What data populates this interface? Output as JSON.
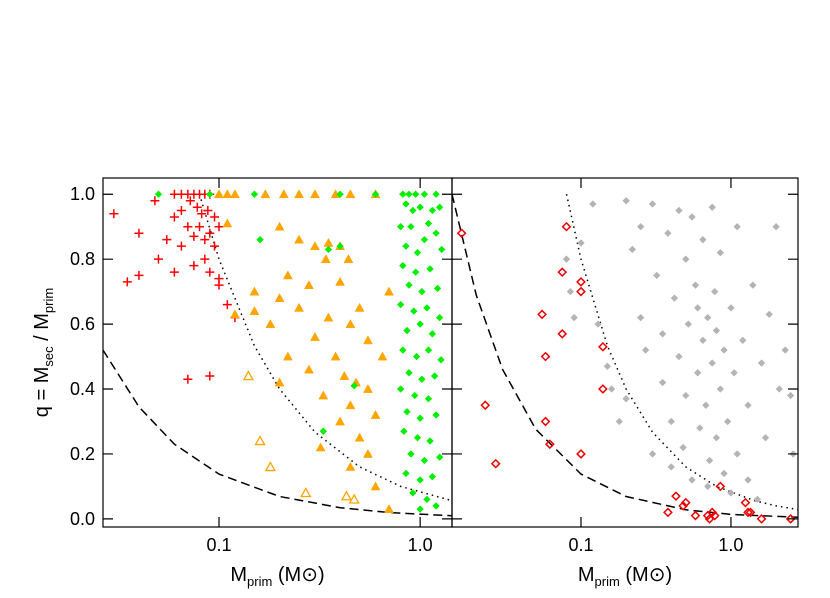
{
  "chart_data": [
    {
      "type": "scatter",
      "xscale": "log",
      "xlabel": [
        "M",
        "prim",
        " (M",
        "⊙",
        ")"
      ],
      "ylabel": [
        "q = M",
        "sec",
        " / M",
        "prim"
      ],
      "xlim": [
        0.0265,
        1.44
      ],
      "ylim": [
        -0.025,
        1.05
      ],
      "xticks": [
        0.1,
        {
          "value": 1,
          "label": "1.0"
        }
      ],
      "yticks": [
        {
          "value": 0,
          "label": "0.0"
        },
        0.2,
        0.4,
        0.6,
        0.8,
        {
          "value": 1,
          "label": "1.0"
        }
      ],
      "ytick_labels": true,
      "lines": [
        {
          "style": "dashed",
          "x": [
            0.0265,
            0.04,
            0.06,
            0.1,
            0.2,
            0.4,
            0.7,
            1.44
          ],
          "y": [
            0.52,
            0.345,
            0.23,
            0.138,
            0.069,
            0.0345,
            0.0197,
            0.0096
          ]
        },
        {
          "style": "dotted",
          "x": [
            0.08,
            0.1,
            0.15,
            0.2,
            0.3,
            0.5,
            0.8,
            1.44
          ],
          "y": [
            1.0,
            0.8,
            0.533,
            0.4,
            0.267,
            0.16,
            0.1,
            0.056
          ]
        }
      ],
      "series": [
        {
          "marker": "plus",
          "color": "#ff0000",
          "x": [
            0.03,
            0.035,
            0.04,
            0.04,
            0.048,
            0.05,
            0.055,
            0.06,
            0.06,
            0.065,
            0.07,
            0.075,
            0.08,
            0.085,
            0.09,
            0.072,
            0.078,
            0.082,
            0.088,
            0.095,
            0.07,
            0.075,
            0.08,
            0.085,
            0.09,
            0.095,
            0.1,
            0.065,
            0.085,
            0.075,
            0.09,
            0.1,
            0.1,
            0.11,
            0.12,
            0.07,
            0.09,
            0.06,
            0.065
          ],
          "y": [
            0.94,
            0.73,
            0.88,
            0.75,
            0.98,
            0.8,
            0.86,
            0.76,
            1.0,
            1.0,
            1.0,
            1.0,
            1.0,
            1.0,
            1.0,
            0.98,
            0.96,
            0.94,
            0.95,
            0.93,
            0.9,
            0.87,
            0.9,
            0.86,
            0.88,
            0.84,
            0.9,
            0.84,
            0.8,
            0.78,
            0.76,
            0.74,
            0.72,
            0.66,
            0.62,
            0.43,
            0.44,
            0.93,
            0.95
          ]
        },
        {
          "marker": "triangle",
          "color": "#ffa500",
          "x": [
            0.1,
            0.11,
            0.12,
            0.17,
            0.21,
            0.25,
            0.3,
            0.38,
            0.45,
            0.6,
            0.11,
            0.2,
            0.25,
            0.3,
            0.35,
            0.4,
            0.44,
            0.22,
            0.28,
            0.34,
            0.4,
            0.15,
            0.2,
            0.15,
            0.18,
            0.25,
            0.35,
            0.45,
            0.5,
            0.55,
            0.3,
            0.22,
            0.28,
            0.38,
            0.42,
            0.48,
            0.2,
            0.33,
            0.45,
            0.55,
            0.6,
            0.4,
            0.5,
            0.32,
            0.55,
            0.45,
            0.6,
            0.7,
            0.12,
            0.7,
            0.65
          ],
          "y": [
            1.0,
            1.0,
            1.0,
            1.0,
            1.0,
            1.0,
            1.0,
            1.0,
            1.0,
            1.0,
            0.91,
            0.9,
            0.86,
            0.84,
            0.85,
            0.84,
            0.8,
            0.75,
            0.72,
            0.8,
            0.73,
            0.7,
            0.68,
            0.64,
            0.6,
            0.65,
            0.62,
            0.6,
            0.65,
            0.55,
            0.56,
            0.5,
            0.46,
            0.5,
            0.44,
            0.42,
            0.42,
            0.38,
            0.35,
            0.4,
            0.32,
            0.3,
            0.25,
            0.22,
            0.2,
            0.16,
            0.1,
            0.03,
            0.63,
            0.7,
            0.5
          ]
        },
        {
          "marker": "triangle-open",
          "color": "#ffa500",
          "x": [
            0.14,
            0.16,
            0.18,
            0.27,
            0.43,
            0.47
          ],
          "y": [
            0.44,
            0.24,
            0.16,
            0.08,
            0.07,
            0.06
          ]
        },
        {
          "marker": "diamond",
          "color": "#00ee00",
          "x": [
            0.05,
            0.09,
            0.15,
            0.16,
            0.4,
            0.6,
            0.4,
            0.47,
            0.33,
            0.35,
            0.82,
            0.88,
            0.95,
            1.05,
            1.2,
            0.85,
            0.92,
            1.0,
            1.15,
            1.25,
            0.8,
            0.9,
            1.1,
            1.2,
            0.85,
            0.97,
            1.05,
            1.28,
            0.82,
            0.95,
            1.12,
            0.88,
            1.02,
            1.22,
            0.8,
            0.93,
            1.08,
            1.25,
            0.86,
            1.0,
            1.15,
            0.82,
            0.96,
            1.1,
            1.27,
            0.88,
            1.02,
            1.18,
            0.8,
            0.94,
            1.1,
            0.86,
            1.0,
            1.2,
            0.83,
            0.97,
            1.12,
            0.9,
            1.05,
            1.25,
            0.85,
            1.0,
            1.15,
            0.92,
            1.08,
            1.2,
            1.0
          ],
          "y": [
            1.0,
            1.0,
            1.0,
            0.86,
            1.0,
            1.0,
            0.84,
            0.41,
            0.27,
            0.83,
            1.0,
            1.0,
            1.0,
            1.0,
            1.0,
            0.97,
            0.95,
            0.96,
            0.95,
            0.96,
            0.9,
            0.9,
            0.91,
            0.88,
            0.84,
            0.82,
            0.86,
            0.83,
            0.78,
            0.76,
            0.77,
            0.72,
            0.7,
            0.71,
            0.66,
            0.64,
            0.65,
            0.62,
            0.58,
            0.6,
            0.57,
            0.52,
            0.5,
            0.52,
            0.49,
            0.45,
            0.43,
            0.44,
            0.4,
            0.38,
            0.37,
            0.33,
            0.31,
            0.32,
            0.27,
            0.25,
            0.24,
            0.2,
            0.18,
            0.19,
            0.14,
            0.12,
            0.13,
            0.08,
            0.06,
            0.04,
            0.03
          ]
        }
      ]
    },
    {
      "type": "scatter",
      "xscale": "log",
      "xlabel": [
        "M",
        "prim",
        " (M",
        "⊙",
        ")"
      ],
      "xlim": [
        0.0138,
        2.8
      ],
      "ylim": [
        -0.025,
        1.05
      ],
      "xticks": [
        0.1,
        {
          "value": 1,
          "label": "1.0"
        }
      ],
      "yticks": [
        0,
        0.2,
        0.4,
        0.6,
        0.8,
        1
      ],
      "ytick_labels": false,
      "lines": [
        {
          "style": "dashed",
          "x": [
            0.0138,
            0.02,
            0.03,
            0.05,
            0.1,
            0.2,
            0.5,
            1,
            2.8
          ],
          "y": [
            1.0,
            0.69,
            0.46,
            0.276,
            0.138,
            0.069,
            0.028,
            0.0138,
            0.005
          ]
        },
        {
          "style": "dotted",
          "x": [
            0.08,
            0.1,
            0.15,
            0.2,
            0.3,
            0.5,
            0.8,
            1.44,
            2,
            2.8
          ],
          "y": [
            1.0,
            0.8,
            0.533,
            0.4,
            0.267,
            0.16,
            0.1,
            0.056,
            0.04,
            0.029
          ]
        }
      ],
      "series": [
        {
          "marker": "diamond",
          "color": "#b4b4b4",
          "x": [
            0.08,
            0.085,
            0.09,
            0.1,
            0.12,
            0.13,
            0.15,
            0.16,
            0.18,
            0.2,
            0.2,
            0.22,
            0.25,
            0.25,
            0.27,
            0.3,
            0.3,
            0.32,
            0.35,
            0.35,
            0.38,
            0.4,
            0.4,
            0.42,
            0.45,
            0.45,
            0.48,
            0.5,
            0.5,
            0.52,
            0.55,
            0.55,
            0.58,
            0.6,
            0.6,
            0.62,
            0.65,
            0.65,
            0.68,
            0.7,
            0.7,
            0.72,
            0.75,
            0.75,
            0.78,
            0.8,
            0.8,
            0.85,
            0.85,
            0.9,
            0.9,
            0.95,
            1.0,
            1.0,
            1.05,
            1.1,
            1.1,
            1.2,
            1.3,
            1.3,
            1.4,
            1.5,
            1.6,
            1.7,
            1.8,
            2.0,
            2.1,
            2.3,
            2.5,
            2.6
          ],
          "y": [
            0.8,
            0.7,
            0.62,
            0.85,
            0.97,
            0.6,
            0.47,
            0.4,
            0.3,
            0.37,
            0.98,
            0.83,
            0.9,
            0.62,
            0.52,
            0.2,
            0.97,
            0.75,
            0.42,
            0.57,
            0.88,
            0.3,
            0.16,
            0.68,
            0.95,
            0.5,
            0.22,
            0.8,
            0.38,
            0.6,
            0.93,
            0.12,
            0.72,
            0.45,
            0.65,
            0.28,
            0.55,
            0.86,
            0.35,
            0.62,
            0.1,
            0.18,
            0.48,
            0.96,
            0.7,
            0.25,
            0.58,
            0.4,
            0.82,
            0.14,
            0.52,
            0.3,
            0.65,
            0.08,
            0.45,
            0.2,
            0.9,
            0.55,
            0.35,
            0.12,
            0.72,
            0.06,
            0.48,
            0.25,
            0.63,
            0.9,
            0.4,
            0.52,
            0.38,
            0.2
          ]
        },
        {
          "marker": "diamond-open",
          "color": "#ee0000",
          "x": [
            0.016,
            0.023,
            0.027,
            0.055,
            0.058,
            0.058,
            0.062,
            0.075,
            0.075,
            0.08,
            0.1,
            0.1,
            0.1,
            0.14,
            0.14,
            0.38,
            0.43,
            0.48,
            0.5,
            0.58,
            0.7,
            0.72,
            0.78,
            0.85,
            1.25,
            1.3,
            1.35,
            1.6,
            2.5,
            0.75
          ],
          "y": [
            0.88,
            0.35,
            0.17,
            0.63,
            0.5,
            0.3,
            0.23,
            0.76,
            0.57,
            0.9,
            0.73,
            0.7,
            0.2,
            0.53,
            0.4,
            0.02,
            0.07,
            0.04,
            0.05,
            0.01,
            0.01,
            0.0,
            0.01,
            0.1,
            0.05,
            0.02,
            0.02,
            0.0,
            0.0,
            0.02
          ]
        }
      ]
    }
  ]
}
